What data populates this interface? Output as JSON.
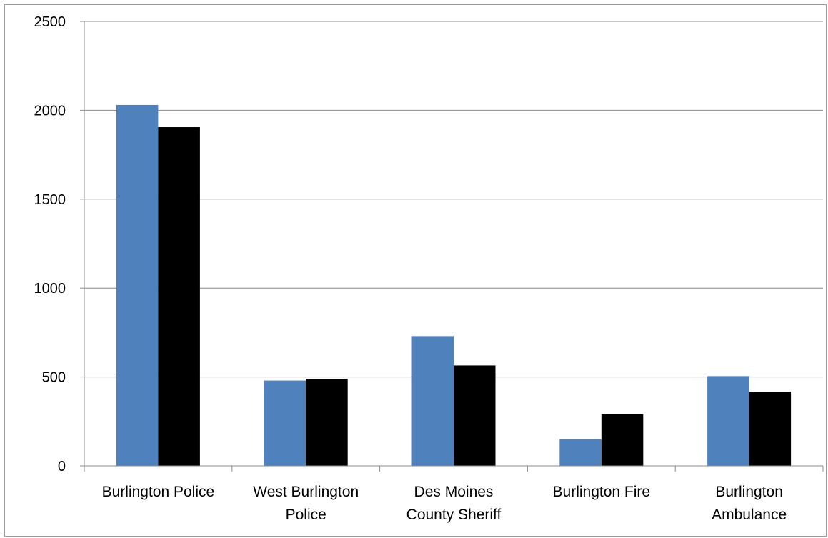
{
  "chart_data": {
    "type": "bar",
    "title": "",
    "xlabel": "",
    "ylabel": "",
    "categories": [
      [
        "Burlington Police"
      ],
      [
        "West Burlington",
        "Police"
      ],
      [
        "Des Moines",
        "County Sheriff"
      ],
      [
        "Burlington Fire"
      ],
      [
        "Burlington",
        "Ambulance"
      ]
    ],
    "series": [
      {
        "color": "#4f81bd",
        "values": [
          2030,
          480,
          730,
          150,
          505
        ]
      },
      {
        "color": "#000000",
        "values": [
          1905,
          490,
          565,
          290,
          418
        ]
      }
    ],
    "ylim": [
      0,
      2500
    ],
    "yticks": [
      0,
      500,
      1000,
      1500,
      2000,
      2500
    ],
    "grid": true,
    "legend": "none"
  }
}
